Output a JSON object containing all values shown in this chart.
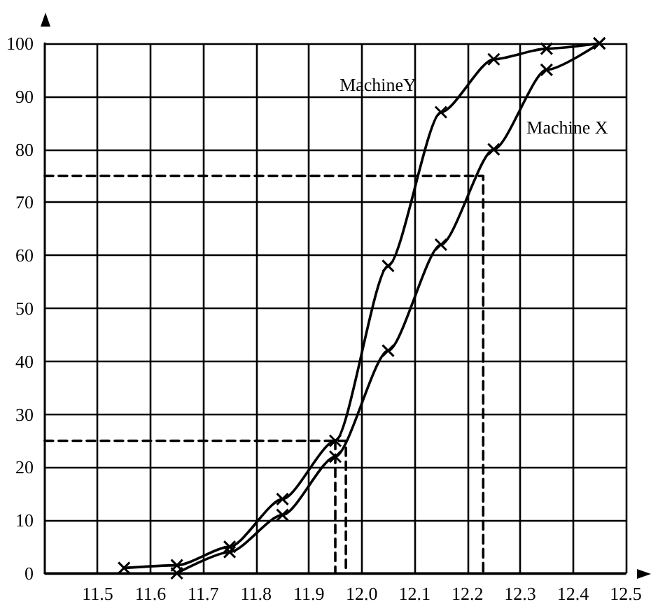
{
  "chart_data": {
    "type": "line",
    "xlim": [
      11.4,
      12.5
    ],
    "xticks": [
      11.5,
      11.6,
      11.7,
      11.8,
      11.9,
      {
        "value": 12,
        "label": "12.0"
      },
      12.1,
      12.2,
      12.3,
      12.4,
      12.5
    ],
    "ylim": [
      0,
      100
    ],
    "yticks": [
      0,
      10,
      20,
      30,
      40,
      50,
      60,
      70,
      80,
      90,
      100
    ],
    "grid": true,
    "legend": false,
    "marker": "cross",
    "line_style": "solid",
    "x": [
      11.55,
      11.65,
      11.75,
      11.85,
      11.95,
      12.05,
      12.15,
      12.25,
      12.35,
      12.45
    ],
    "series": [
      {
        "name": "MachineY",
        "color": "#000000",
        "values": [
          1,
          1.5,
          5,
          14,
          25,
          58,
          87,
          97,
          99,
          100
        ]
      },
      {
        "name": "Machine X",
        "color": "#000000",
        "x": [
          11.65,
          11.75,
          11.85,
          11.95,
          12.05,
          12.15,
          12.25,
          12.35,
          12.45
        ],
        "values": [
          0,
          4,
          11,
          22,
          42,
          62,
          80,
          95,
          100
        ]
      },
      {
        "color": "#000000",
        "x": [
          11.4,
          11.97,
          11.97
        ],
        "values": [
          25,
          25,
          0
        ],
        "marker": "none",
        "line_style": "dashed"
      },
      {
        "color": "#000000",
        "x": [
          11.95,
          11.95
        ],
        "values": [
          25,
          0
        ],
        "marker": "none",
        "line_style": "dashed"
      },
      {
        "color": "#000000",
        "x": [
          11.4,
          12.23,
          12.23
        ],
        "values": [
          75,
          75,
          0
        ],
        "marker": "none",
        "line_style": "dashed"
      }
    ]
  }
}
